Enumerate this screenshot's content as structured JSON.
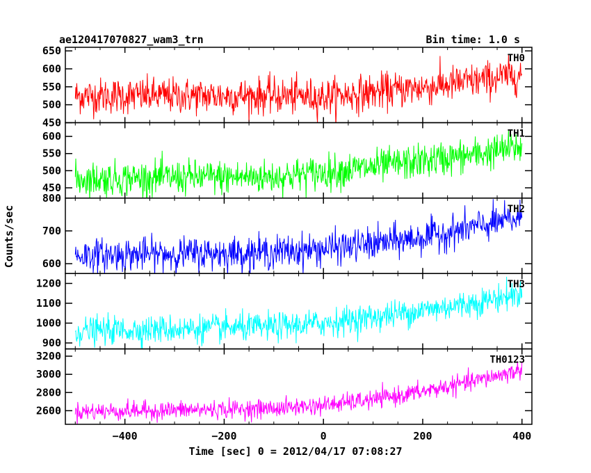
{
  "header": {
    "title": "ae120417070827_wam3_trn",
    "bin_time": "Bin time: 1.0 s"
  },
  "chart_data": {
    "type": "line",
    "title": "ae120417070827_wam3_trn",
    "subtitle": "Bin time: 1.0 s",
    "xlabel": "Time [sec] 0 = 2012/04/17 07:08:27",
    "ylabel": "Counts/sec",
    "xlim": [
      -520,
      420
    ],
    "xticks": [
      -400,
      -200,
      0,
      200,
      400
    ],
    "x_tick_labels": [
      "−400",
      "−200",
      "0",
      "200",
      "400"
    ],
    "x_range_data": [
      -500,
      400
    ],
    "bin_seconds": 1.0,
    "panels": [
      {
        "name": "TH0",
        "color": "#ff0000",
        "ylim": [
          450,
          660
        ],
        "yticks": [
          450,
          500,
          550,
          600,
          650
        ],
        "ytick_labels": [
          "450",
          "500",
          "550",
          "600",
          "650"
        ],
        "trend": [
          [
            -500,
            525
          ],
          [
            -100,
            525
          ],
          [
            0,
            522
          ],
          [
            100,
            535
          ],
          [
            200,
            548
          ],
          [
            300,
            565
          ],
          [
            400,
            585
          ]
        ],
        "noise_sigma": 25
      },
      {
        "name": "TH1",
        "color": "#00ff00",
        "ylim": [
          420,
          640
        ],
        "yticks": [
          450,
          500,
          550,
          600
        ],
        "ytick_labels": [
          "450",
          "500",
          "550",
          "600"
        ],
        "trend": [
          [
            -500,
            475
          ],
          [
            -300,
            480
          ],
          [
            -100,
            482
          ],
          [
            0,
            495
          ],
          [
            100,
            510
          ],
          [
            200,
            528
          ],
          [
            300,
            545
          ],
          [
            400,
            570
          ]
        ],
        "noise_sigma": 25
      },
      {
        "name": "TH2",
        "color": "#0000ff",
        "ylim": [
          570,
          800
        ],
        "yticks": [
          600,
          700,
          800
        ],
        "ytick_labels": [
          "600",
          "700",
          "800"
        ],
        "trend": [
          [
            -500,
            625
          ],
          [
            -300,
            630
          ],
          [
            -100,
            635
          ],
          [
            0,
            645
          ],
          [
            100,
            660
          ],
          [
            200,
            680
          ],
          [
            300,
            710
          ],
          [
            400,
            740
          ]
        ],
        "noise_sigma": 25
      },
      {
        "name": "TH3",
        "color": "#00ffff",
        "ylim": [
          870,
          1250
        ],
        "yticks": [
          900,
          1000,
          1100,
          1200
        ],
        "ytick_labels": [
          "900",
          "1000",
          "1100",
          "1200"
        ],
        "trend": [
          [
            -500,
            960
          ],
          [
            -300,
            970
          ],
          [
            -100,
            980
          ],
          [
            0,
            1000
          ],
          [
            100,
            1030
          ],
          [
            200,
            1065
          ],
          [
            300,
            1100
          ],
          [
            400,
            1150
          ]
        ],
        "noise_sigma": 35
      },
      {
        "name": "TH0123",
        "color": "#ff00ff",
        "ylim": [
          2450,
          3280
        ],
        "yticks": [
          2600,
          2800,
          3000,
          3200
        ],
        "ytick_labels": [
          "2600",
          "2800",
          "3000",
          "3200"
        ],
        "trend": [
          [
            -500,
            2590
          ],
          [
            -300,
            2605
          ],
          [
            -100,
            2625
          ],
          [
            0,
            2660
          ],
          [
            100,
            2720
          ],
          [
            200,
            2810
          ],
          [
            300,
            2920
          ],
          [
            400,
            3050
          ]
        ],
        "noise_sigma": 50
      }
    ],
    "grid": false,
    "legend": "none"
  }
}
